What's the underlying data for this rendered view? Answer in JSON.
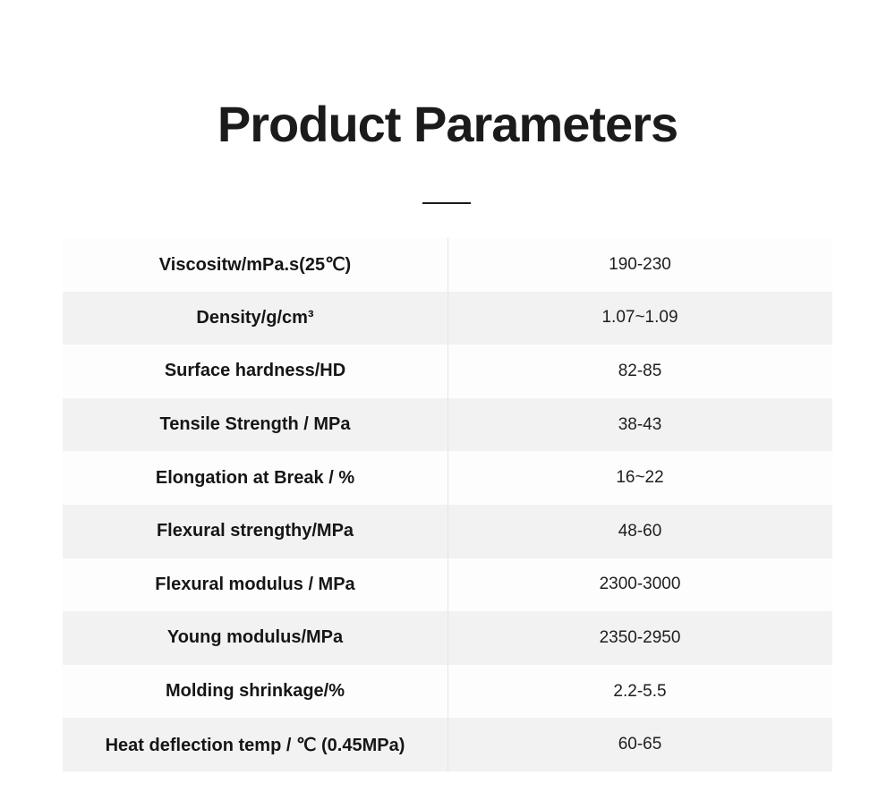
{
  "page": {
    "title": "Product Parameters"
  },
  "table": {
    "rows": [
      {
        "label": "Viscositw/mPa.s(25℃)",
        "value": "190-230"
      },
      {
        "label": "Density/g/cm³",
        "value": "1.07~1.09"
      },
      {
        "label": "Surface hardness/HD",
        "value": "82-85"
      },
      {
        "label": "Tensile Strength / MPa",
        "value": "38-43"
      },
      {
        "label": "Elongation at Break / %",
        "value": "16~22"
      },
      {
        "label": "Flexural strengthy/MPa",
        "value": "48-60"
      },
      {
        "label": "Flexural modulus / MPa",
        "value": "2300-3000"
      },
      {
        "label": "Young modulus/MPa",
        "value": "2350-2950"
      },
      {
        "label": "Molding shrinkage/%",
        "value": "2.2-5.5"
      },
      {
        "label": "Heat deflection temp / ℃ (0.45MPa)",
        "value": "60-65"
      }
    ]
  },
  "colors": {
    "row_alt_bg": "#f2f2f2",
    "row_bg": "#fdfdfd",
    "divider": "#e5e5e5",
    "text": "#1b1b1b"
  }
}
